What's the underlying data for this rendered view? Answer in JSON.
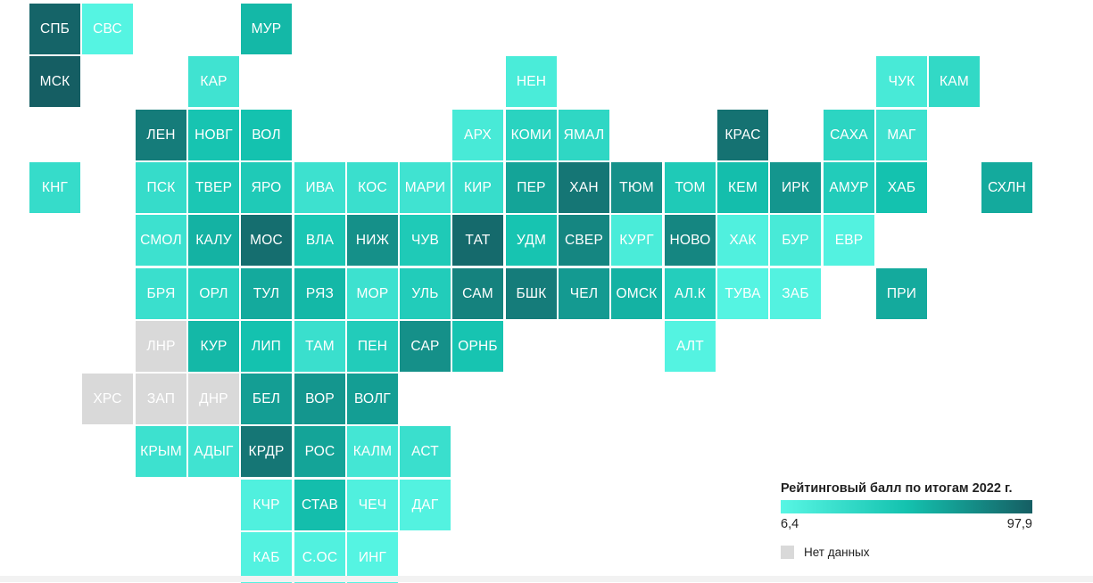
{
  "chart_data": {
    "type": "heatmap",
    "title": "Рейтинговый балл по итогам 2022 г.",
    "scale": {
      "min": 6.4,
      "max": 97.9,
      "min_label": "6,4",
      "max_label": "97,9"
    },
    "no_data_label": "Нет данных",
    "colors": {
      "low": "#58f6e4",
      "mid": "#14c2af",
      "high": "#155e63",
      "no_data": "#d9d9d9"
    },
    "regions": [
      {
        "label": "СПБ",
        "col": 0,
        "row": 0,
        "level": 0.97
      },
      {
        "label": "СВС",
        "col": 1,
        "row": 0,
        "level": 0.02
      },
      {
        "label": "МУР",
        "col": 4,
        "row": 0,
        "level": 0.55
      },
      {
        "label": "МСК",
        "col": 0,
        "row": 1,
        "level": 1.0
      },
      {
        "label": "КАР",
        "col": 3,
        "row": 1,
        "level": 0.18
      },
      {
        "label": "НЕН",
        "col": 9,
        "row": 1,
        "level": 0.1
      },
      {
        "label": "ЧУК",
        "col": 16,
        "row": 1,
        "level": 0.12
      },
      {
        "label": "КАМ",
        "col": 17,
        "row": 1,
        "level": 0.28
      },
      {
        "label": "ЛЕН",
        "col": 2,
        "row": 2,
        "level": 0.85
      },
      {
        "label": "НОВГ",
        "col": 3,
        "row": 2,
        "level": 0.48
      },
      {
        "label": "ВОЛ",
        "col": 4,
        "row": 2,
        "level": 0.5
      },
      {
        "label": "АРХ",
        "col": 8,
        "row": 2,
        "level": 0.12
      },
      {
        "label": "КОМИ",
        "col": 9,
        "row": 2,
        "level": 0.34
      },
      {
        "label": "ЯМАЛ",
        "col": 10,
        "row": 2,
        "level": 0.3
      },
      {
        "label": "КРАС",
        "col": 13,
        "row": 2,
        "level": 0.9
      },
      {
        "label": "САХА",
        "col": 15,
        "row": 2,
        "level": 0.32
      },
      {
        "label": "МАГ",
        "col": 16,
        "row": 2,
        "level": 0.2
      },
      {
        "label": "КНГ",
        "col": 0,
        "row": 3,
        "level": 0.25
      },
      {
        "label": "ПСК",
        "col": 2,
        "row": 3,
        "level": 0.25
      },
      {
        "label": "ТВЕР",
        "col": 3,
        "row": 3,
        "level": 0.45
      },
      {
        "label": "ЯРО",
        "col": 4,
        "row": 3,
        "level": 0.42
      },
      {
        "label": "ИВА",
        "col": 5,
        "row": 3,
        "level": 0.2
      },
      {
        "label": "КОС",
        "col": 6,
        "row": 3,
        "level": 0.22
      },
      {
        "label": "МАРИ",
        "col": 7,
        "row": 3,
        "level": 0.18
      },
      {
        "label": "КИР",
        "col": 8,
        "row": 3,
        "level": 0.24
      },
      {
        "label": "ПЕР",
        "col": 9,
        "row": 3,
        "level": 0.65
      },
      {
        "label": "ХАН",
        "col": 10,
        "row": 3,
        "level": 0.88
      },
      {
        "label": "ТЮМ",
        "col": 11,
        "row": 3,
        "level": 0.75
      },
      {
        "label": "ТОМ",
        "col": 12,
        "row": 3,
        "level": 0.42
      },
      {
        "label": "КЕМ",
        "col": 13,
        "row": 3,
        "level": 0.52
      },
      {
        "label": "ИРК",
        "col": 14,
        "row": 3,
        "level": 0.72
      },
      {
        "label": "АМУР",
        "col": 15,
        "row": 3,
        "level": 0.4
      },
      {
        "label": "ХАБ",
        "col": 16,
        "row": 3,
        "level": 0.5
      },
      {
        "label": "СХЛН",
        "col": 18,
        "row": 3,
        "level": 0.62
      },
      {
        "label": "СМОЛ",
        "col": 2,
        "row": 4,
        "level": 0.2
      },
      {
        "label": "КАЛУ",
        "col": 3,
        "row": 4,
        "level": 0.58
      },
      {
        "label": "МОС",
        "col": 4,
        "row": 4,
        "level": 0.92
      },
      {
        "label": "ВЛА",
        "col": 5,
        "row": 4,
        "level": 0.45
      },
      {
        "label": "НИЖ",
        "col": 6,
        "row": 4,
        "level": 0.75
      },
      {
        "label": "ЧУВ",
        "col": 7,
        "row": 4,
        "level": 0.42
      },
      {
        "label": "ТАТ",
        "col": 8,
        "row": 4,
        "level": 0.94
      },
      {
        "label": "УДМ",
        "col": 9,
        "row": 4,
        "level": 0.48
      },
      {
        "label": "СВЕР",
        "col": 10,
        "row": 4,
        "level": 0.8
      },
      {
        "label": "КУРГ",
        "col": 11,
        "row": 4,
        "level": 0.1
      },
      {
        "label": "НОВО",
        "col": 12,
        "row": 4,
        "level": 0.8
      },
      {
        "label": "ХАК",
        "col": 13,
        "row": 4,
        "level": 0.06
      },
      {
        "label": "БУР",
        "col": 14,
        "row": 4,
        "level": 0.12
      },
      {
        "label": "ЕВР",
        "col": 15,
        "row": 4,
        "level": 0.04
      },
      {
        "label": "БРЯ",
        "col": 2,
        "row": 5,
        "level": 0.22
      },
      {
        "label": "ОРЛ",
        "col": 3,
        "row": 5,
        "level": 0.35
      },
      {
        "label": "ТУЛ",
        "col": 4,
        "row": 5,
        "level": 0.62
      },
      {
        "label": "РЯЗ",
        "col": 5,
        "row": 5,
        "level": 0.55
      },
      {
        "label": "МОР",
        "col": 6,
        "row": 5,
        "level": 0.2
      },
      {
        "label": "УЛЬ",
        "col": 7,
        "row": 5,
        "level": 0.4
      },
      {
        "label": "САМ",
        "col": 8,
        "row": 5,
        "level": 0.82
      },
      {
        "label": "БШК",
        "col": 9,
        "row": 5,
        "level": 0.85
      },
      {
        "label": "ЧЕЛ",
        "col": 10,
        "row": 5,
        "level": 0.7
      },
      {
        "label": "ОМСК",
        "col": 11,
        "row": 5,
        "level": 0.58
      },
      {
        "label": "АЛ.К",
        "col": 12,
        "row": 5,
        "level": 0.38
      },
      {
        "label": "ТУВА",
        "col": 13,
        "row": 5,
        "level": 0.02
      },
      {
        "label": "ЗАБ",
        "col": 14,
        "row": 5,
        "level": 0.04
      },
      {
        "label": "ПРИ",
        "col": 16,
        "row": 5,
        "level": 0.62
      },
      {
        "label": "ЛНР",
        "col": 2,
        "row": 6,
        "level": null
      },
      {
        "label": "КУР",
        "col": 3,
        "row": 6,
        "level": 0.55
      },
      {
        "label": "ЛИП",
        "col": 4,
        "row": 6,
        "level": 0.5
      },
      {
        "label": "ТАМ",
        "col": 5,
        "row": 6,
        "level": 0.22
      },
      {
        "label": "ПЕН",
        "col": 6,
        "row": 6,
        "level": 0.4
      },
      {
        "label": "САР",
        "col": 7,
        "row": 6,
        "level": 0.75
      },
      {
        "label": "ОРНБ",
        "col": 8,
        "row": 6,
        "level": 0.48
      },
      {
        "label": "АЛТ",
        "col": 12,
        "row": 6,
        "level": 0.03
      },
      {
        "label": "ХРС",
        "col": 1,
        "row": 7,
        "level": null
      },
      {
        "label": "ЗАП",
        "col": 2,
        "row": 7,
        "level": null
      },
      {
        "label": "ДНР",
        "col": 3,
        "row": 7,
        "level": null
      },
      {
        "label": "БЕЛ",
        "col": 4,
        "row": 7,
        "level": 0.68
      },
      {
        "label": "ВОР",
        "col": 5,
        "row": 7,
        "level": 0.72
      },
      {
        "label": "ВОЛГ",
        "col": 6,
        "row": 7,
        "level": 0.68
      },
      {
        "label": "КРЫМ",
        "col": 2,
        "row": 8,
        "level": 0.2
      },
      {
        "label": "АДЫГ",
        "col": 3,
        "row": 8,
        "level": 0.18
      },
      {
        "label": "КРДР",
        "col": 4,
        "row": 8,
        "level": 0.88
      },
      {
        "label": "РОС",
        "col": 5,
        "row": 8,
        "level": 0.65
      },
      {
        "label": "КАЛМ",
        "col": 6,
        "row": 8,
        "level": 0.15
      },
      {
        "label": "АСТ",
        "col": 7,
        "row": 8,
        "level": 0.22
      },
      {
        "label": "КЧР",
        "col": 4,
        "row": 9,
        "level": 0.06
      },
      {
        "label": "СТАВ",
        "col": 5,
        "row": 9,
        "level": 0.52
      },
      {
        "label": "ЧЕЧ",
        "col": 6,
        "row": 9,
        "level": 0.06
      },
      {
        "label": "ДАГ",
        "col": 7,
        "row": 9,
        "level": 0.04
      },
      {
        "label": "КАБ",
        "col": 4,
        "row": 10,
        "level": 0.04
      },
      {
        "label": "С.ОС",
        "col": 5,
        "row": 10,
        "level": 0.05
      },
      {
        "label": "ИНГ",
        "col": 6,
        "row": 10,
        "level": 0.02
      }
    ]
  }
}
